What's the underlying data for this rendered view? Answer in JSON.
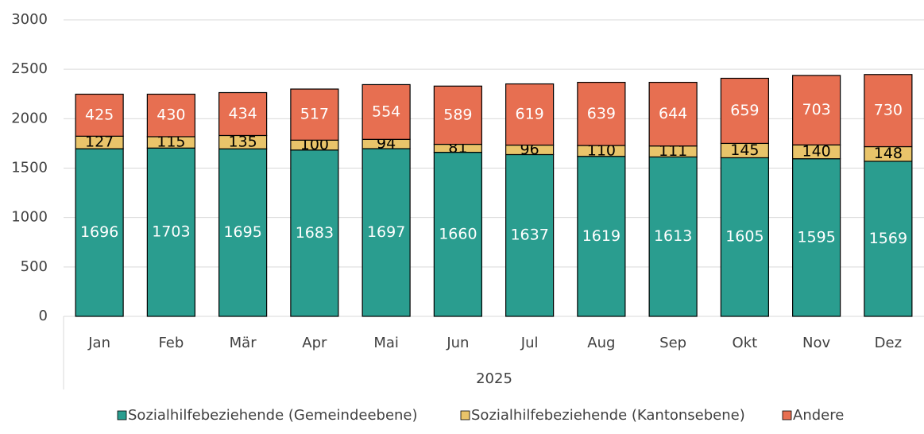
{
  "chart_data": {
    "type": "stacked_bar",
    "categories": [
      "Jan",
      "Feb",
      "Mär",
      "Apr",
      "Mai",
      "Jun",
      "Jul",
      "Aug",
      "Sep",
      "Okt",
      "Nov",
      "Dez"
    ],
    "group_label": "2025",
    "series": [
      {
        "name": "Sozialhilfebeziehende (Gemeindeebene)",
        "color": "#2a9d8f",
        "label_color": "#ffffff",
        "values": [
          1696,
          1703,
          1695,
          1683,
          1697,
          1660,
          1637,
          1619,
          1613,
          1605,
          1595,
          1569
        ]
      },
      {
        "name": "Sozialhilfebeziehende (Kantonsebene)",
        "color": "#e9c46a",
        "label_color": "#000000",
        "values": [
          127,
          115,
          135,
          100,
          94,
          81,
          96,
          110,
          111,
          145,
          140,
          148
        ]
      },
      {
        "name": "Andere",
        "color": "#e76f51",
        "label_color": "#ffffff",
        "values": [
          425,
          430,
          434,
          517,
          554,
          589,
          619,
          639,
          644,
          659,
          703,
          730
        ]
      }
    ],
    "ylim": [
      0,
      3000
    ],
    "yticks": [
      0,
      500,
      1000,
      1500,
      2000,
      2500,
      3000
    ],
    "grid": true
  }
}
